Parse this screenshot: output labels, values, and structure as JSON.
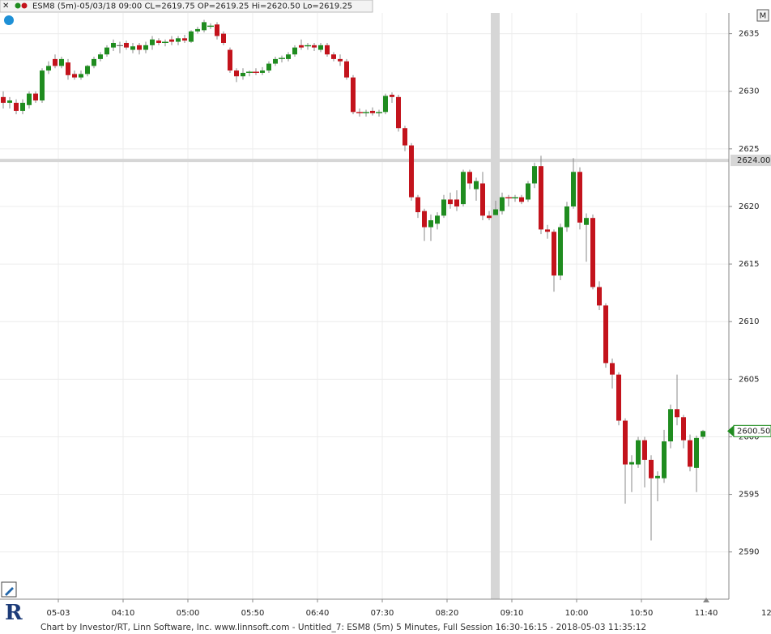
{
  "chart_data": {
    "type": "candlestick",
    "header": "ESM8 (5m)-05/03/18 09:00 CL=2619.75 OP=2619.25 Hi=2620.50 Lo=2619.25",
    "footer": "Chart by Investor/RT, Linn Software, Inc. www.linnsoft.com - Untitled_7: ESM8 (5m) 5 Minutes, Full Session 16:30-16:15 - 2018-05-03 11:35:12",
    "corner_button": "M",
    "corner_number": "12",
    "up_color": "#1f8c1f",
    "down_color": "#c3131c",
    "ylim": [
      2585.9,
      2636.8
    ],
    "yticks": [
      2590,
      2595,
      2600,
      2605,
      2610,
      2615,
      2620,
      2625,
      2630,
      2635
    ],
    "grid": true,
    "crosshair_price": {
      "value": 2624,
      "label": "2624.00"
    },
    "last_price": {
      "value": 2600.5,
      "label": "2600.50"
    },
    "categories": [
      null,
      null,
      null,
      null,
      null,
      null,
      null,
      null,
      "05-03",
      null,
      null,
      null,
      null,
      null,
      null,
      null,
      null,
      null,
      "04:10",
      null,
      null,
      null,
      null,
      null,
      null,
      null,
      null,
      null,
      "05:00",
      null,
      null,
      null,
      null,
      null,
      null,
      null,
      null,
      null,
      "05:50",
      null,
      null,
      null,
      null,
      null,
      null,
      null,
      null,
      null,
      "06:40",
      null,
      null,
      null,
      null,
      null,
      null,
      null,
      null,
      null,
      "07:30",
      null,
      null,
      null,
      null,
      null,
      null,
      null,
      null,
      null,
      "08:20",
      null,
      null,
      null,
      null,
      null,
      null,
      null,
      null,
      null,
      "09:10",
      null,
      null,
      null,
      null,
      null,
      null,
      null,
      null,
      null,
      "10:00",
      null,
      null,
      null,
      null,
      null,
      null,
      null,
      null,
      null,
      "10:50",
      null,
      null,
      null,
      null,
      null,
      null,
      null,
      null,
      null,
      "11:40"
    ],
    "open": [
      2629.5,
      2629,
      2629,
      2628.3,
      2628.8,
      2629.8,
      2629.2,
      2631.8,
      2632.8,
      2632.2,
      2632.5,
      2631.5,
      2631.2,
      2631.5,
      2632.2,
      2632.8,
      2633.2,
      2633.8,
      2634,
      2634.2,
      2633.6,
      2634,
      2633.6,
      2634,
      2634.4,
      2634.2,
      2634.5,
      2634.3,
      2634.6,
      2634.3,
      2635.2,
      2635.3,
      2635.6,
      2635.8,
      2635,
      2633.6,
      2631.8,
      2631.3,
      2631.6,
      2631.7,
      2631.6,
      2631.8,
      2632.4,
      2632.8,
      2632.8,
      2633.2,
      2634,
      2633.9,
      2634,
      2633.6,
      2634,
      2633.2,
      2632.8,
      2632.6,
      2631.2,
      2628.2,
      2628.1,
      2628.3,
      2628.1,
      2628.2,
      2629.7,
      2629.5,
      2626.8,
      2625.3,
      2620.8,
      2619.6,
      2618.2,
      2618.5,
      2619.2,
      2620.6,
      2620.6,
      2620.2,
      2623,
      2621.5,
      2622,
      2619.2,
      2619.25,
      2619.6,
      2620.8,
      2620.7,
      2620.8,
      2620.6,
      2622,
      2623.5,
      2618,
      2617.8,
      2614,
      2618.2,
      2620,
      2623,
      2618.4,
      2619,
      2613,
      2611.4,
      2606.4,
      2605.4,
      2601.4,
      2597.6,
      2597.6,
      2599.7,
      2598,
      2596.4,
      2596.4,
      2599.6,
      2602.4,
      2601.7,
      2599.7,
      2597.3,
      2600
    ],
    "high": [
      2630,
      2629.5,
      2629.3,
      2629.3,
      2630,
      2630,
      2632,
      2632.6,
      2633.2,
      2633,
      2632.8,
      2631.8,
      2631.8,
      2632.3,
      2633,
      2633.4,
      2634,
      2634.5,
      2634.3,
      2634.4,
      2634.2,
      2634.2,
      2634.3,
      2634.8,
      2634.6,
      2634.5,
      2634.8,
      2634.8,
      2634.9,
      2635.3,
      2635.6,
      2636.2,
      2635.9,
      2636,
      2635.2,
      2633.8,
      2632,
      2632,
      2631.8,
      2632,
      2632.1,
      2632.6,
      2633,
      2633.1,
      2633.4,
      2634,
      2634.5,
      2634.2,
      2634.2,
      2634.2,
      2634.2,
      2633.4,
      2633.2,
      2632.8,
      2631.4,
      2628.5,
      2628.4,
      2628.6,
      2628.4,
      2629.8,
      2629.9,
      2629.7,
      2627,
      2625.5,
      2621,
      2619.8,
      2619.3,
      2619.5,
      2621,
      2621.2,
      2621.4,
      2623.2,
      2623.2,
      2622.5,
      2623,
      2619.6,
      2620.5,
      2621.2,
      2621,
      2621,
      2621,
      2622.2,
      2623.8,
      2624.4,
      2618.4,
      2618,
      2618.5,
      2620.4,
      2624.2,
      2623.4,
      2619.4,
      2619.3,
      2613.5,
      2611.6,
      2606.8,
      2605.6,
      2601.6,
      2598.4,
      2600,
      2600,
      2598.4,
      2597,
      2600.6,
      2602.8,
      2605.4,
      2601.9,
      2600.2,
      2600.1,
      2600.6
    ],
    "low": [
      2628.5,
      2628.5,
      2628,
      2628,
      2628.5,
      2629,
      2629,
      2631.5,
      2632,
      2632,
      2631,
      2631,
      2631,
      2631.3,
      2632,
      2632.6,
      2633,
      2633.5,
      2633.3,
      2633.6,
      2633.3,
      2633.2,
      2633.3,
      2633.6,
      2634,
      2633.9,
      2634,
      2634,
      2634.2,
      2634.2,
      2635,
      2635.1,
      2635.4,
      2634.5,
      2634,
      2631.6,
      2630.8,
      2631,
      2631.3,
      2631.4,
      2631.4,
      2631.6,
      2632.2,
      2632.5,
      2632.6,
      2633,
      2633.6,
      2633.6,
      2633.5,
      2633.4,
      2633,
      2632.6,
      2632.2,
      2631,
      2628,
      2627.8,
      2627.8,
      2627.9,
      2627.8,
      2628,
      2629,
      2626.5,
      2624.8,
      2620.5,
      2619,
      2617,
      2617,
      2618,
      2619,
      2619.8,
      2619.6,
      2620,
      2621.5,
      2620.5,
      2618.8,
      2618.8,
      2619.25,
      2619.3,
      2620,
      2620.4,
      2620.2,
      2620.4,
      2621.6,
      2617.6,
      2617.2,
      2612.6,
      2613.6,
      2617.8,
      2619.8,
      2618,
      2615.2,
      2612.8,
      2611,
      2606,
      2604.2,
      2601,
      2594.2,
      2595.2,
      2597.3,
      2595.6,
      2591,
      2594.4,
      2596,
      2599,
      2601,
      2599,
      2597,
      2595.2,
      2599.8
    ],
    "close": [
      2629,
      2629.2,
      2628.3,
      2629,
      2629.8,
      2629.2,
      2631.8,
      2632.2,
      2632.2,
      2632.8,
      2631.4,
      2631.2,
      2631.5,
      2632.2,
      2632.8,
      2633.2,
      2633.8,
      2634.2,
      2634,
      2633.8,
      2633.9,
      2633.6,
      2634,
      2634.5,
      2634.2,
      2634.3,
      2634.3,
      2634.6,
      2634.4,
      2635.2,
      2635.4,
      2636,
      2635.7,
      2634.8,
      2634.2,
      2631.8,
      2631.3,
      2631.6,
      2631.7,
      2631.6,
      2631.8,
      2632.4,
      2632.8,
      2632.9,
      2633.2,
      2633.8,
      2633.8,
      2634,
      2633.8,
      2634,
      2633.2,
      2632.8,
      2632.6,
      2631.2,
      2628.2,
      2628.1,
      2628.2,
      2628.1,
      2628.2,
      2629.6,
      2629.5,
      2626.8,
      2625.3,
      2620.8,
      2619.5,
      2618.2,
      2618.8,
      2619.2,
      2620.6,
      2620.2,
      2620,
      2623,
      2622,
      2622.2,
      2619.2,
      2619,
      2619.75,
      2620.8,
      2620.7,
      2620.8,
      2620.4,
      2622,
      2623.5,
      2618,
      2617.8,
      2614,
      2618.2,
      2620,
      2623,
      2618.6,
      2619,
      2613,
      2611.4,
      2606.4,
      2605.4,
      2601.4,
      2597.6,
      2597.8,
      2599.7,
      2598,
      2596.4,
      2596.6,
      2599.6,
      2602.4,
      2601.7,
      2599.7,
      2597.4,
      2599.9,
      2600.5
    ]
  }
}
